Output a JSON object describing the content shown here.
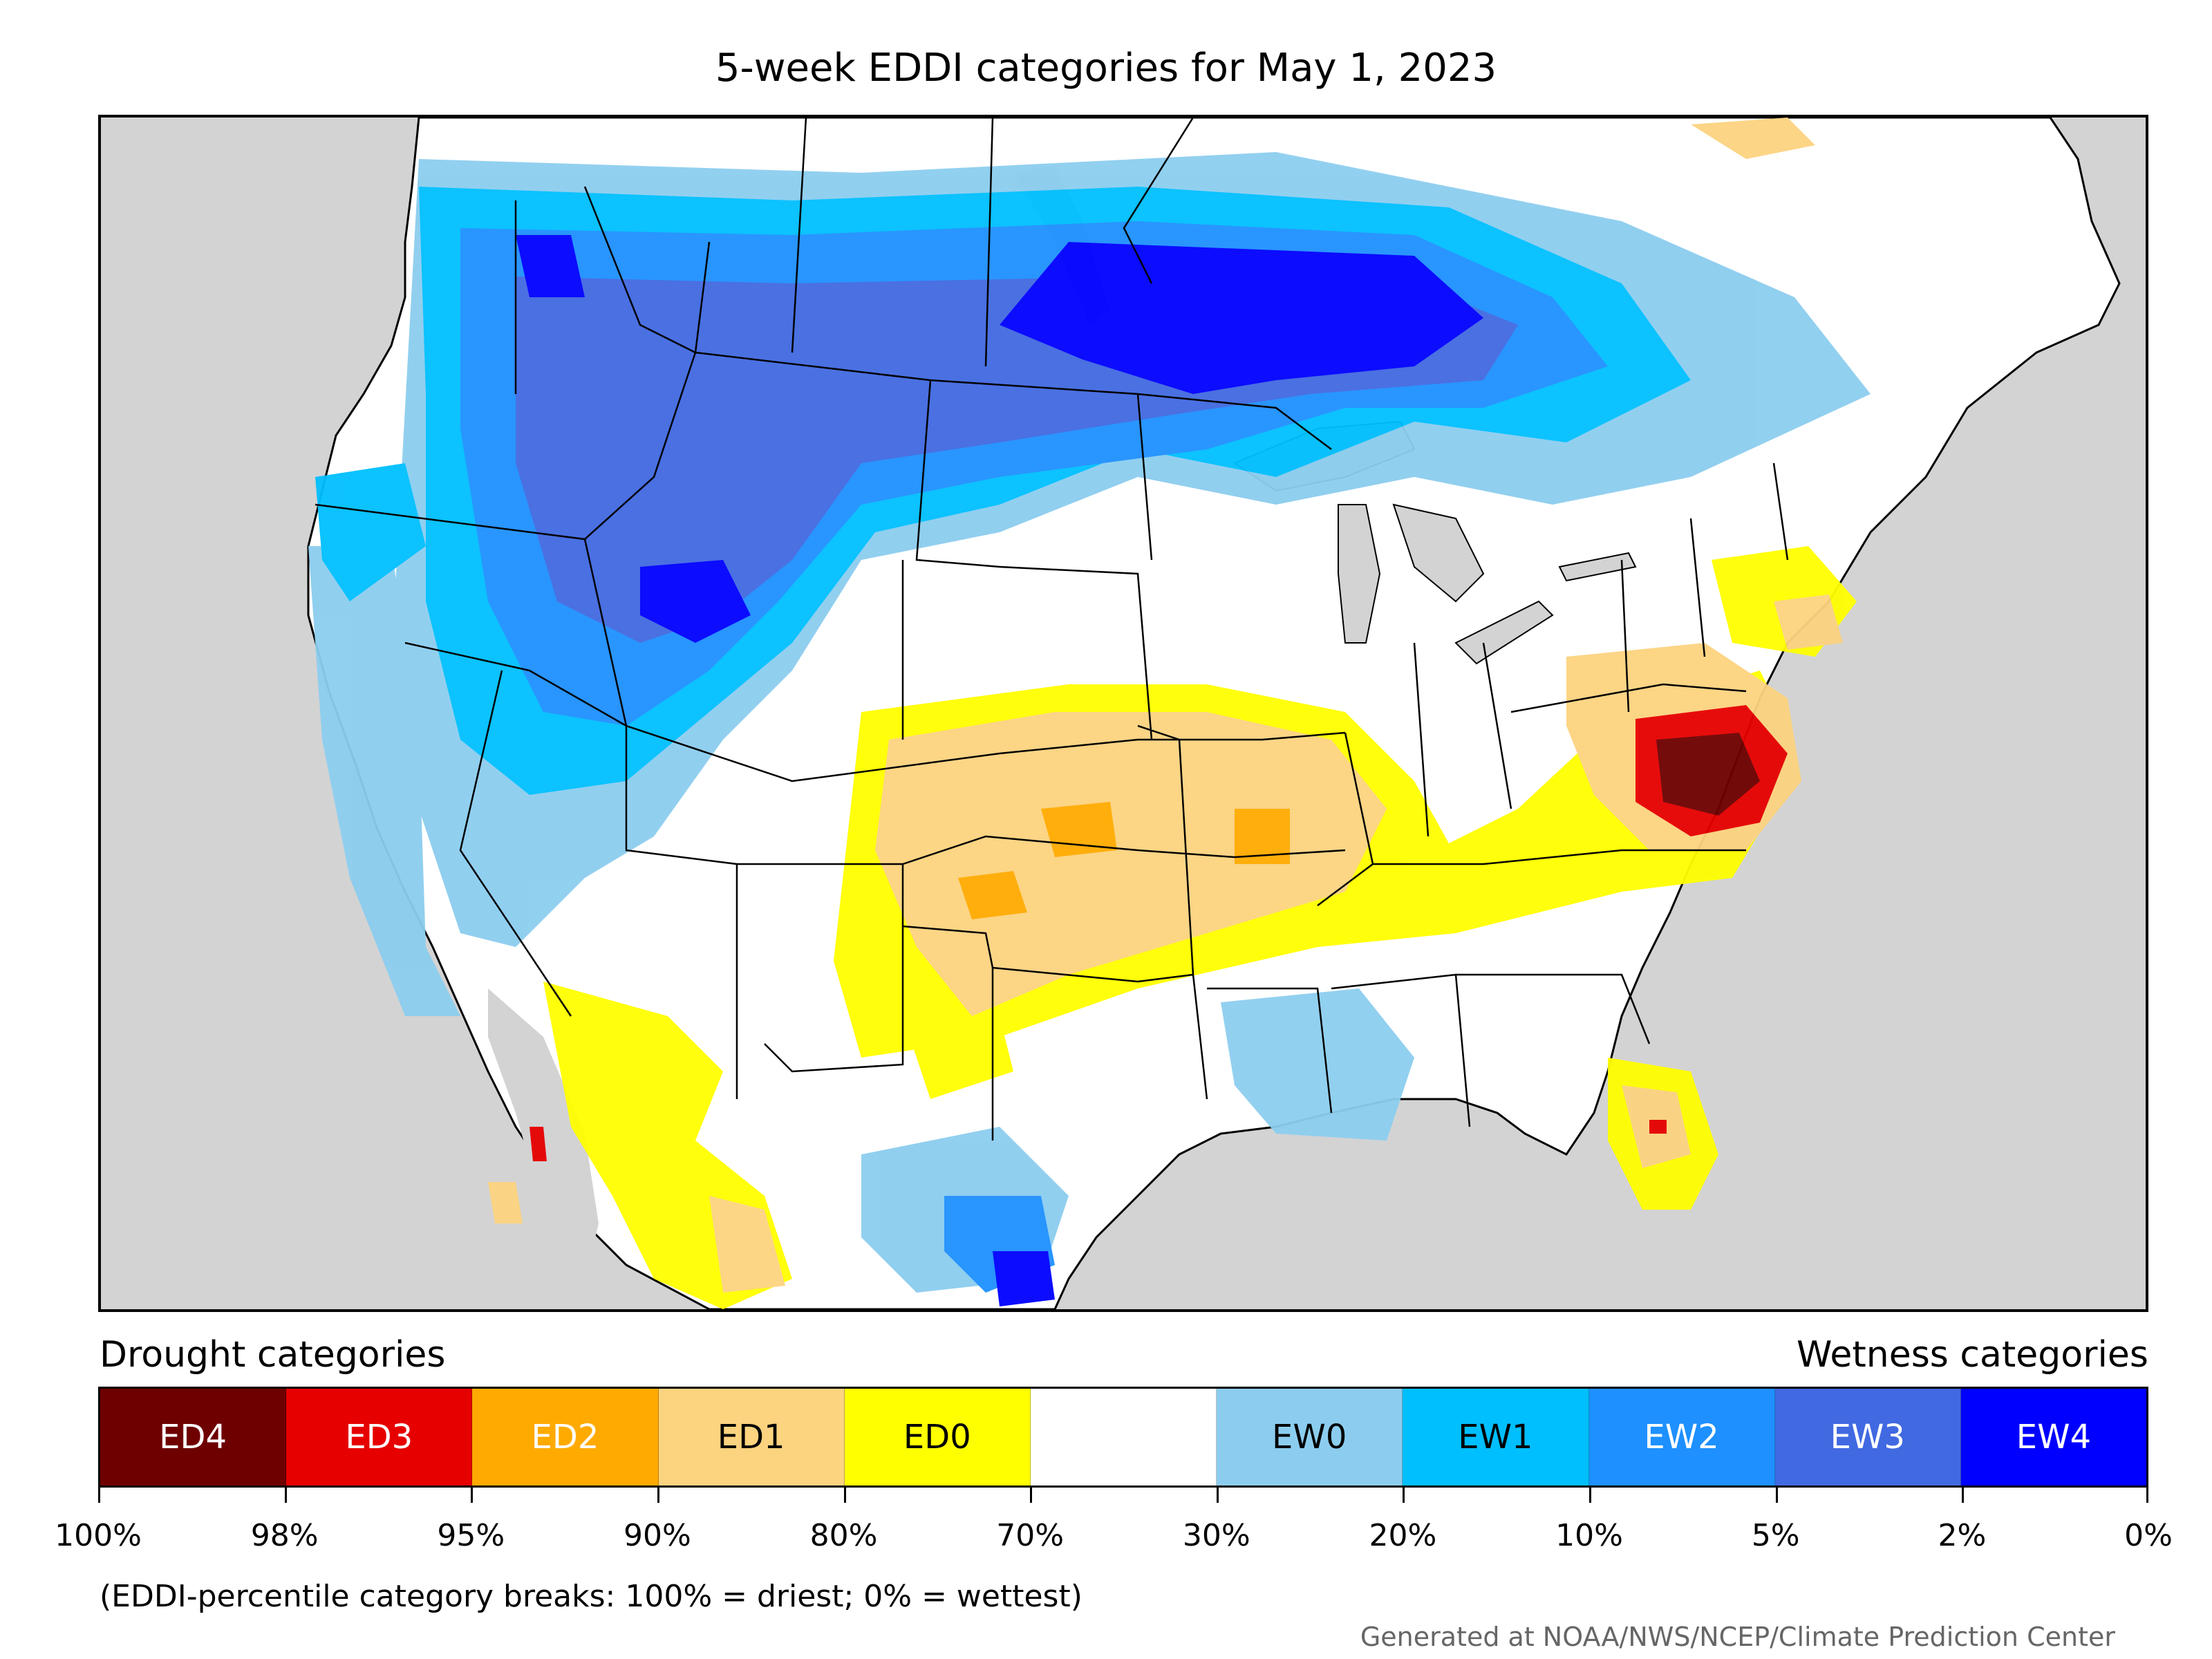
{
  "title": "5-week EDDI categories for May 1, 2023",
  "legend": {
    "drought_heading": "Drought categories",
    "wetness_heading": "Wetness categories",
    "categories": [
      {
        "label": "ED4",
        "color": "#6e0000",
        "text_color": "#ffffff"
      },
      {
        "label": "ED3",
        "color": "#e60000",
        "text_color": "#ffffff"
      },
      {
        "label": "ED2",
        "color": "#ffaa00",
        "text_color": "#ffffff"
      },
      {
        "label": "ED1",
        "color": "#fcd37f",
        "text_color": "#000000"
      },
      {
        "label": "ED0",
        "color": "#ffff00",
        "text_color": "#000000"
      },
      {
        "label": "",
        "color": "#ffffff",
        "text_color": "#000000"
      },
      {
        "label": "EW0",
        "color": "#8ccdef",
        "text_color": "#000000"
      },
      {
        "label": "EW1",
        "color": "#00bfff",
        "text_color": "#000000"
      },
      {
        "label": "EW2",
        "color": "#1e90ff",
        "text_color": "#ffffff"
      },
      {
        "label": "EW3",
        "color": "#4169e1",
        "text_color": "#ffffff"
      },
      {
        "label": "EW4",
        "color": "#0000ff",
        "text_color": "#ffffff"
      }
    ],
    "breaks": [
      "100%",
      "98%",
      "95%",
      "90%",
      "80%",
      "70%",
      "30%",
      "20%",
      "10%",
      "5%",
      "2%",
      "0%"
    ]
  },
  "note": "(EDDI-percentile category breaks: 100% = driest; 0% = wettest)",
  "credit": "Generated at NOAA/NWS/NCEP/Climate Prediction Center",
  "map": {
    "ocean_color": "#d3d3d3",
    "land_color": "#ffffff",
    "border_color": "#000000"
  }
}
